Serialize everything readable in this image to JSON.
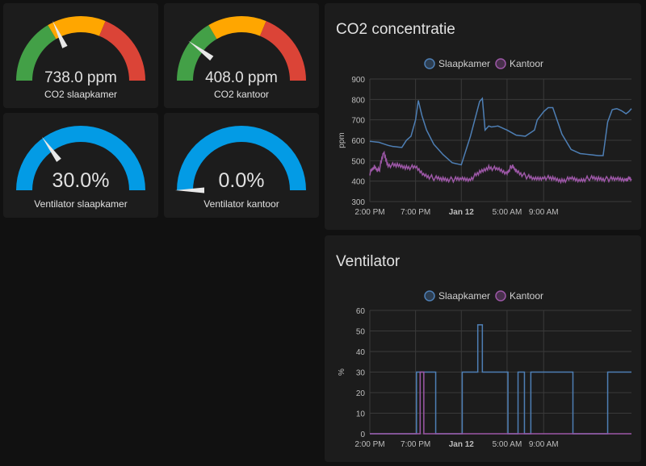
{
  "gauges": [
    {
      "value": "738.0 ppm",
      "label": "CO2 slaapkamer",
      "needle_fraction": 0.36,
      "type": "co2"
    },
    {
      "value": "408.0 ppm",
      "label": "CO2 kantoor",
      "needle_fraction": 0.205,
      "type": "co2"
    },
    {
      "value": "30.0%",
      "label": "Ventilator slaapkamer",
      "needle_fraction": 0.3,
      "type": "fan"
    },
    {
      "value": "0.0%",
      "label": "Ventilator kantoor",
      "needle_fraction": 0.0,
      "type": "fan"
    }
  ],
  "colors": {
    "green": "#43a047",
    "yellow": "#ffa600",
    "red": "#db4437",
    "blue": "#039be5",
    "series_bedroom": "#4e7fb5",
    "series_office": "#9c57a6",
    "grid": "#3a3a3a"
  },
  "graphs": {
    "co2": {
      "title": "CO2 concentratie"
    },
    "fan": {
      "title": "Ventilator"
    }
  },
  "chart_data": [
    {
      "type": "line",
      "title": "CO2 concentratie",
      "ylabel": "ppm",
      "ylim": [
        300,
        900
      ],
      "yticks": [
        "900",
        "800",
        "700",
        "600",
        "500",
        "400",
        "300"
      ],
      "xticks": [
        "2:00 PM",
        "7:00 PM",
        "Jan 12",
        "5:00 AM",
        "9:00 AM"
      ],
      "grid": true,
      "legend_position": "top",
      "series": [
        {
          "name": "Slaapkamer",
          "x_hours": [
            0,
            1,
            2,
            2.5,
            3.5,
            4,
            4.5,
            5,
            5.3,
            5.7,
            6.2,
            7,
            8,
            9,
            10,
            11,
            12,
            12.3,
            12.6,
            13,
            13.3,
            14,
            15,
            16,
            17,
            18,
            18.3,
            19,
            19.5,
            20,
            21,
            22,
            23,
            24,
            25,
            25.5,
            26,
            26.5,
            27,
            27.5,
            28,
            28.3,
            28.6
          ],
          "values": [
            595,
            590,
            575,
            570,
            565,
            600,
            620,
            700,
            795,
            720,
            650,
            580,
            530,
            490,
            480,
            620,
            790,
            805,
            650,
            670,
            665,
            670,
            650,
            625,
            620,
            650,
            700,
            740,
            760,
            760,
            630,
            555,
            535,
            530,
            525,
            525,
            690,
            750,
            755,
            745,
            730,
            740,
            755
          ]
        },
        {
          "name": "Kantoor",
          "x_hours": [
            0,
            0.5,
            1,
            1.5,
            2,
            3,
            4,
            5,
            6,
            7,
            8,
            9,
            10,
            11,
            12,
            13,
            14,
            15,
            15.5,
            16,
            17,
            18,
            19,
            20,
            21,
            22,
            23,
            24,
            25,
            26,
            27,
            28,
            28.6
          ],
          "values": [
            440,
            470,
            450,
            540,
            480,
            475,
            470,
            465,
            430,
            415,
            410,
            408,
            410,
            412,
            440,
            470,
            455,
            440,
            475,
            450,
            425,
            410,
            420,
            410,
            405,
            410,
            405,
            415,
            412,
            410,
            410,
            412,
            410
          ]
        }
      ]
    },
    {
      "type": "line",
      "title": "Ventilator",
      "ylabel": "%",
      "ylim": [
        0,
        60
      ],
      "yticks": [
        "60",
        "50",
        "40",
        "30",
        "20",
        "10",
        "0"
      ],
      "xticks": [
        "2:00 PM",
        "7:00 PM",
        "Jan 12",
        "5:00 AM",
        "9:00 AM"
      ],
      "grid": true,
      "legend_position": "top",
      "series": [
        {
          "name": "Slaapkamer",
          "steps": [
            [
              0,
              0
            ],
            [
              5.1,
              30
            ],
            [
              7.2,
              0
            ],
            [
              10.1,
              30
            ],
            [
              11.3,
              30
            ],
            [
              11.8,
              53
            ],
            [
              12.3,
              30
            ],
            [
              15.1,
              0
            ],
            [
              16.2,
              30
            ],
            [
              16.9,
              0
            ],
            [
              17.6,
              30
            ],
            [
              22.2,
              0
            ],
            [
              26.0,
              30
            ],
            [
              28.6,
              30
            ]
          ]
        },
        {
          "name": "Kantoor",
          "steps": [
            [
              0,
              0
            ],
            [
              5.5,
              30
            ],
            [
              5.9,
              0
            ],
            [
              28.6,
              0
            ]
          ]
        }
      ]
    }
  ]
}
